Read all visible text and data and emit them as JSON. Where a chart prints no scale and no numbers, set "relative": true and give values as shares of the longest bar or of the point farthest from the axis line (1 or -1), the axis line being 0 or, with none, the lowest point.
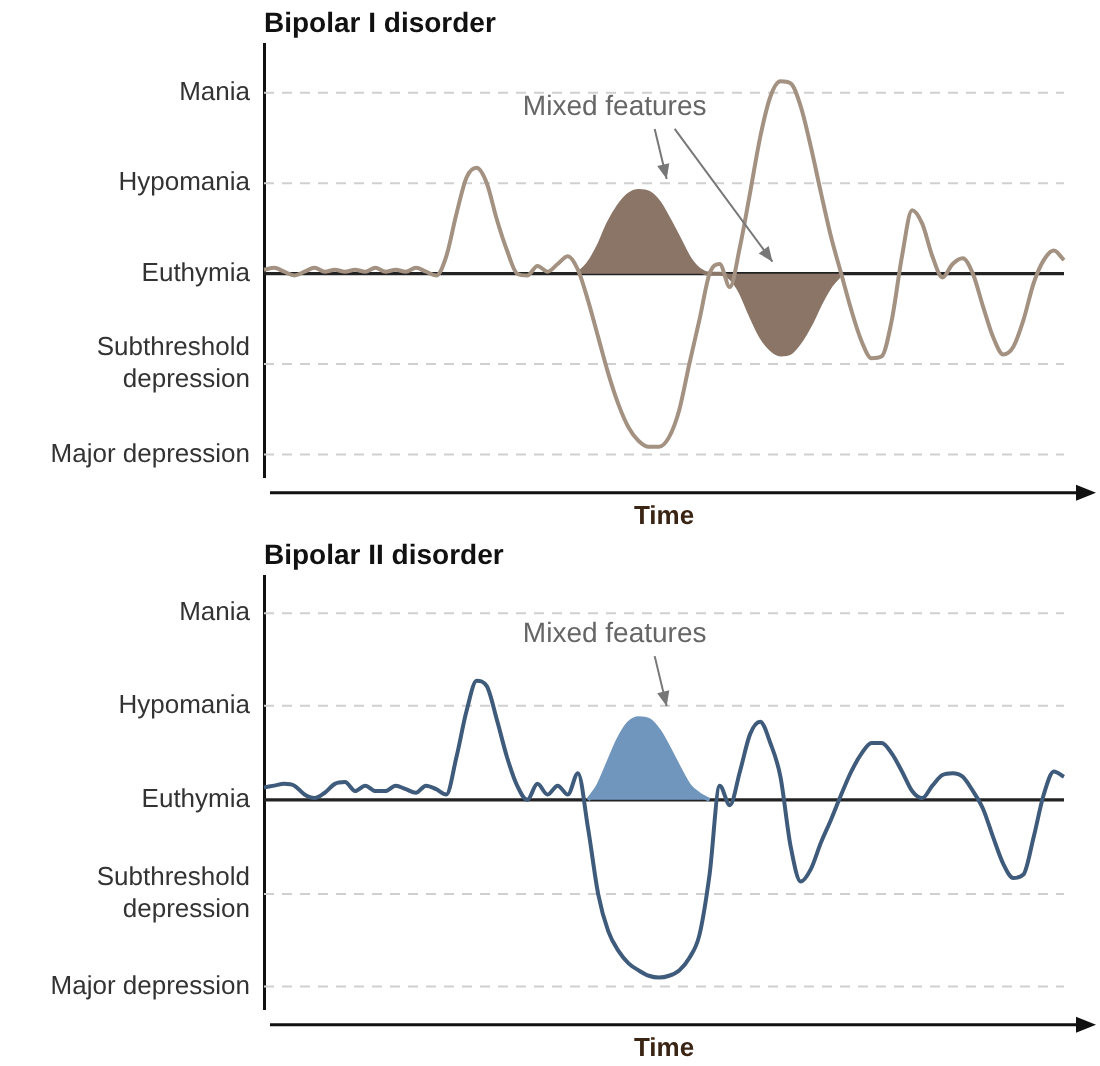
{
  "chart_data": [
    {
      "type": "line",
      "title": "Bipolar I disorder",
      "xlabel": "Time",
      "relative": true,
      "categories": [
        null,
        null,
        null,
        null,
        null,
        null,
        null,
        null,
        null,
        null,
        null,
        null,
        null,
        null,
        null,
        null,
        null,
        null,
        null,
        null,
        null,
        null,
        null,
        null,
        null,
        null,
        null,
        null,
        null,
        null,
        null,
        null,
        null,
        null,
        null,
        null,
        null,
        null,
        null,
        null,
        null,
        null,
        null,
        null,
        null,
        null,
        null,
        null,
        null,
        null,
        null,
        null,
        null,
        null,
        null,
        null,
        null,
        null,
        null,
        null,
        null,
        null,
        null,
        null,
        null,
        null,
        null,
        null,
        null,
        null,
        null,
        null,
        null,
        null,
        null,
        null,
        null,
        null,
        null,
        null
      ],
      "series": [
        {
          "color": "#a39181",
          "values": [
            0.02,
            0.03,
            0.01,
            -0.01,
            0.01,
            0.03,
            0.01,
            0.02,
            0.01,
            0.02,
            0.01,
            0.03,
            0.01,
            0.02,
            0.01,
            0.03,
            0.01,
            -0.01,
            0.09,
            0.31,
            0.5,
            0.55,
            0.47,
            0.28,
            0.12,
            0,
            -0.01,
            0.04,
            0.01,
            0.05,
            0.09,
            0.02,
            -0.14,
            -0.33,
            -0.52,
            -0.68,
            -0.8,
            -0.87,
            -0.9,
            -0.9,
            -0.85,
            -0.71,
            -0.47,
            -0.24,
            0,
            0.05,
            -0.07,
            0.14,
            0.42,
            0.71,
            0.92,
            1,
            0.99,
            0.87,
            0.66,
            0.42,
            0.19,
            0,
            -0.19,
            -0.35,
            -0.44,
            -0.43,
            -0.24,
            0.09,
            0.33,
            0.26,
            0.09,
            -0.02,
            0.05,
            0.08,
            0,
            -0.17,
            -0.33,
            -0.42,
            -0.38,
            -0.24,
            -0.05,
            0.07,
            0.12,
            0.07
          ]
        },
        {
          "type": "area",
          "color": "#8a7566",
          "values": [
            null,
            null,
            null,
            null,
            null,
            null,
            null,
            null,
            null,
            null,
            null,
            null,
            null,
            null,
            null,
            null,
            null,
            null,
            null,
            null,
            null,
            null,
            null,
            null,
            null,
            null,
            null,
            null,
            null,
            null,
            null,
            0,
            0.05,
            0.14,
            0.26,
            0.35,
            0.41,
            0.43,
            0.42,
            0.37,
            0.28,
            0.18,
            0.08,
            0.02,
            0,
            0,
            -0.02,
            -0.09,
            -0.21,
            -0.32,
            -0.39,
            -0.42,
            -0.41,
            -0.35,
            -0.26,
            -0.15,
            -0.06,
            0,
            null,
            null,
            null,
            null,
            null,
            null,
            null,
            null,
            null,
            null,
            null,
            null,
            null,
            null,
            null,
            null,
            null,
            null,
            null,
            null,
            null,
            null
          ]
        }
      ],
      "ref_lines": [
        {
          "axis": "y",
          "value": 0.94,
          "label": "Mania",
          "color": "#d0d0d0",
          "line_style": "dashed"
        },
        {
          "axis": "y",
          "value": 0.47,
          "label": "Hypomania",
          "color": "#d0d0d0",
          "line_style": "dashed"
        },
        {
          "axis": "y",
          "value": 0,
          "label": "Euthymia",
          "color": "#222222"
        },
        {
          "axis": "y",
          "value": -0.47,
          "label": "Subthreshold depression",
          "color": "#d0d0d0",
          "line_style": "dashed"
        },
        {
          "axis": "y",
          "value": -0.94,
          "label": "Major depression",
          "color": "#d0d0d0",
          "line_style": "dashed"
        }
      ],
      "annotations": [
        "Mixed features"
      ]
    },
    {
      "type": "line",
      "title": "Bipolar II disorder",
      "xlabel": "Time",
      "relative": true,
      "categories": [
        null,
        null,
        null,
        null,
        null,
        null,
        null,
        null,
        null,
        null,
        null,
        null,
        null,
        null,
        null,
        null,
        null,
        null,
        null,
        null,
        null,
        null,
        null,
        null,
        null,
        null,
        null,
        null,
        null,
        null,
        null,
        null,
        null,
        null,
        null,
        null,
        null,
        null,
        null,
        null,
        null,
        null,
        null,
        null,
        null,
        null,
        null,
        null,
        null,
        null,
        null,
        null,
        null,
        null,
        null,
        null,
        null,
        null,
        null,
        null,
        null,
        null,
        null,
        null,
        null,
        null,
        null,
        null,
        null,
        null,
        null,
        null,
        null,
        null,
        null,
        null,
        null,
        null,
        null,
        null
      ],
      "series": [
        {
          "color": "#3f5b7b",
          "values": [
            0.07,
            0.08,
            0.09,
            0.08,
            0.03,
            0.01,
            0.04,
            0.09,
            0.1,
            0.05,
            0.08,
            0.05,
            0.05,
            0.08,
            0.06,
            0.04,
            0.08,
            0.06,
            0.03,
            0.24,
            0.5,
            0.67,
            0.64,
            0.45,
            0.24,
            0.08,
            0,
            0.09,
            0.03,
            0.08,
            0.03,
            0.15,
            -0.16,
            -0.53,
            -0.74,
            -0.85,
            -0.92,
            -0.96,
            -0.99,
            -1,
            -0.99,
            -0.96,
            -0.89,
            -0.76,
            -0.42,
            0.08,
            -0.03,
            0.16,
            0.37,
            0.44,
            0.32,
            0.13,
            -0.26,
            -0.46,
            -0.39,
            -0.24,
            -0.11,
            0.03,
            0.16,
            0.26,
            0.32,
            0.32,
            0.26,
            0.16,
            0.05,
            0.01,
            0.08,
            0.14,
            0.15,
            0.13,
            0.05,
            -0.05,
            -0.21,
            -0.36,
            -0.44,
            -0.42,
            -0.21,
            0.03,
            0.16,
            0.13
          ]
        },
        {
          "type": "area",
          "color": "#7096be",
          "values": [
            null,
            null,
            null,
            null,
            null,
            null,
            null,
            null,
            null,
            null,
            null,
            null,
            null,
            null,
            null,
            null,
            null,
            null,
            null,
            null,
            null,
            null,
            null,
            null,
            null,
            null,
            null,
            null,
            null,
            null,
            null,
            null,
            0,
            0.08,
            0.21,
            0.34,
            0.43,
            0.46,
            0.45,
            0.39,
            0.29,
            0.18,
            0.08,
            0.03,
            0,
            null,
            null,
            null,
            null,
            null,
            null,
            null,
            null,
            null,
            null,
            null,
            null,
            null,
            null,
            null,
            null,
            null,
            null,
            null,
            null,
            null,
            null,
            null,
            null,
            null,
            null,
            null,
            null,
            null,
            null,
            null,
            null,
            null,
            null,
            null
          ]
        }
      ],
      "ref_lines": [
        {
          "axis": "y",
          "value": 1.05,
          "label": "Mania",
          "color": "#d0d0d0",
          "line_style": "dashed"
        },
        {
          "axis": "y",
          "value": 0.53,
          "label": "Hypomania",
          "color": "#d0d0d0",
          "line_style": "dashed"
        },
        {
          "axis": "y",
          "value": 0,
          "label": "Euthymia",
          "color": "#222222"
        },
        {
          "axis": "y",
          "value": -0.53,
          "label": "Subthreshold depression",
          "color": "#d0d0d0",
          "line_style": "dashed"
        },
        {
          "axis": "y",
          "value": -1.05,
          "label": "Major depression",
          "color": "#d0d0d0",
          "line_style": "dashed"
        }
      ],
      "annotations": [
        "Mixed features"
      ]
    }
  ]
}
